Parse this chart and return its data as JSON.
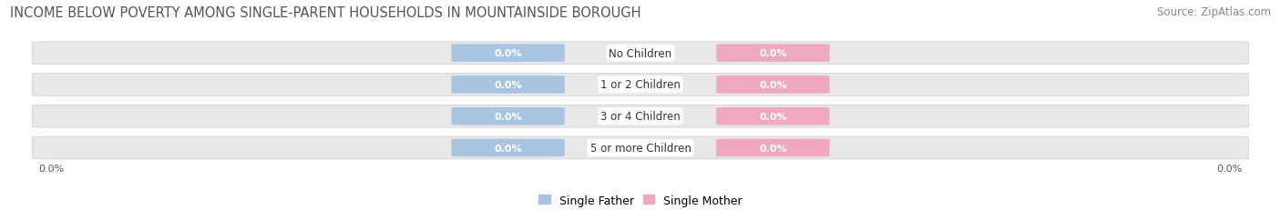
{
  "title": "INCOME BELOW POVERTY AMONG SINGLE-PARENT HOUSEHOLDS IN MOUNTAINSIDE BOROUGH",
  "source": "Source: ZipAtlas.com",
  "categories": [
    "No Children",
    "1 or 2 Children",
    "3 or 4 Children",
    "5 or more Children"
  ],
  "father_values": [
    0.0,
    0.0,
    0.0,
    0.0
  ],
  "mother_values": [
    0.0,
    0.0,
    0.0,
    0.0
  ],
  "father_color": "#a8c4e0",
  "mother_color": "#f0a8c0",
  "row_bg_color": "#e8e8e8",
  "title_fontsize": 10.5,
  "source_fontsize": 8.5,
  "tick_fontsize": 8,
  "label_fontsize": 8.5,
  "legend_fontsize": 9,
  "x_left_label": "0.0%",
  "x_right_label": "0.0%",
  "background_color": "#ffffff"
}
